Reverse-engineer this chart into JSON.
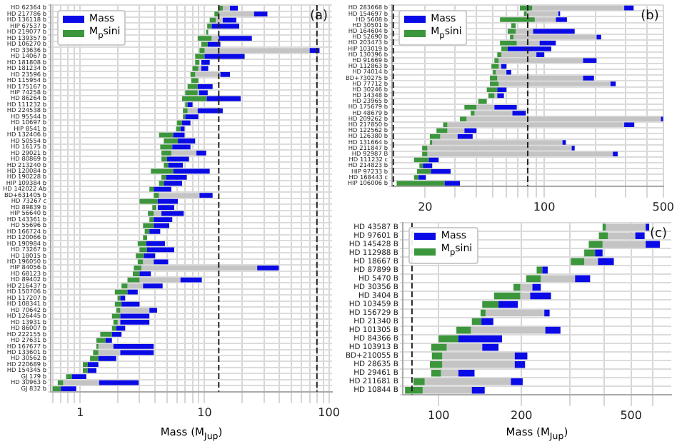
{
  "chart_data": [
    {
      "type": "bar",
      "orientation": "horizontal",
      "log": "x",
      "grid": true,
      "legend": "top left",
      "xlabel": "Mass (M$_{Jup}$)",
      "annotations": [
        "(a)"
      ],
      "categories": [
        "HD 62364 b",
        "HD 217786 b",
        "HD 136118 b",
        "HIP 67537 b",
        "HD 219077 b",
        "HD 139357 b",
        "HD 106270 b",
        "HD 33636 b",
        "HD 14067 b",
        "HD 181808 b",
        "HD 181234 b",
        "HD 23596 b",
        "HD 115954 b",
        "HD 175167 b",
        "HIP 74258 b",
        "HD 86264 b",
        "HD 111232 b",
        "HD 224538 b",
        "HD 95544 b",
        "HD 10697 b",
        "HIP 8541 b",
        "HD 132406 b",
        "HD 50554 b",
        "HD 16175 b",
        "HD 29021 b",
        "HD 80869 b",
        "HD 213240 b",
        "HD 120084 b",
        "HD 190228 b",
        "HIP 109384 b",
        "HD 142022 Ab",
        "BD+631405 b",
        "HD 73267 c",
        "HD 89839 b",
        "HIP 56640 b",
        "HD 143361 b",
        "HD 55696 b",
        "HD 166724 b",
        "HD 120066 b",
        "HD 190984 b",
        "HD 73267 b",
        "HD 18015 b",
        "HD 196050 b",
        "HIP 84056 b",
        "HD 68123 b",
        "HD 89402 b",
        "HD 216437 b",
        "HD 150706 b",
        "HD 117207 b",
        "HD 108341 b",
        "HD 70642 b",
        "HD 126445 b",
        "HD 13931 b",
        "HD 86007 b",
        "HD 222155 b",
        "HD 27631 b",
        "HD 167677 b",
        "HD 133601 b",
        "HD 30562 b",
        "HD 220689 b",
        "HD 154345 b",
        "GJ 179 b",
        "HD 30963 b",
        "GJ 832 b"
      ],
      "series": [
        {
          "name": "Mass",
          "color": "#0a0ae6",
          "base": [
            16,
            25,
            14,
            11.4,
            null,
            13,
            10.6,
            70,
            10,
            9.4,
            9.4,
            13.4,
            null,
            8.8,
            9,
            10.4,
            7.3,
            8.8,
            7,
            6.6,
            6.4,
            5.6,
            6.1,
            5.5,
            8.6,
            5,
            5.1,
            5.6,
            4.9,
            4.7,
            3.9,
            9.1,
            4.2,
            4.2,
            4.5,
            3.9,
            3.9,
            3.6,
            null,
            3.4,
            3.45,
            3.25,
            3.9,
            26.5,
            3,
            6.4,
            3.2,
            2.4,
            2.1,
            2.15,
            3.6,
            2.1,
            2.1,
            1.95,
            1.8,
            1.6,
            1.85,
            2.1,
            1.4,
            1.15,
            1.15,
            0.86,
            1.42,
            0.7
          ],
          "values": [
            2.5,
            7,
            4,
            7.6,
            null,
            11,
            2.8,
            14,
            11,
            1.6,
            1.3,
            2.6,
            null,
            2.8,
            1.6,
            9.1,
            0.7,
            5.2,
            1.9,
            1.1,
            0.5,
            1.3,
            2.3,
            2.2,
            1.7,
            2.5,
            1.6,
            5.4,
            2.3,
            1.9,
            1.5,
            2.5,
            1.9,
            1.5,
            2.3,
            1.6,
            1.3,
            0.8,
            null,
            1.4,
            2.25,
            0.75,
            1.2,
            13,
            0.7,
            3.1,
            1.4,
            0.5,
            0.2,
            0.85,
            0.55,
            1.5,
            1.5,
            0.35,
            0.35,
            0.2,
            2.05,
            1.8,
            0.55,
            0.25,
            0.2,
            0.26,
            1.53,
            0.23
          ]
        },
        {
          "name": "M$_{p}$sini",
          "color": "#3c963c",
          "base": [
            13,
            12,
            11,
            10.5,
            10.3,
            8.8,
            9.4,
            9.1,
            8.4,
            8.4,
            8,
            7.7,
            7.8,
            7.3,
            7,
            6.6,
            7,
            6.7,
            6.7,
            6,
            5.9,
            4.3,
            4.7,
            4.4,
            4.5,
            4.5,
            4.7,
            3.7,
            4.5,
            4.3,
            3.6,
            3.9,
            3,
            3.8,
            3.5,
            3.6,
            3.2,
            3.3,
            3.2,
            2.9,
            3,
            2.8,
            2.9,
            2.7,
            2.65,
            2.4,
            2.15,
            1.9,
            2,
            1.9,
            1.95,
            1.8,
            1.85,
            1.8,
            1.45,
            1.35,
            1.35,
            1.27,
            1.2,
            1.05,
            1.05,
            0.77,
            0.66,
            0.6
          ],
          "values": [
            1,
            1,
            1.3,
            0.9,
            0.4,
            2.6,
            1.2,
            0.9,
            1.6,
            0.7,
            0.9,
            0.7,
            1.1,
            1.5,
            1.8,
            3.8,
            0.3,
            0.6,
            0.3,
            0.6,
            0.5,
            1.3,
            1.4,
            1.1,
            0.9,
            0.5,
            0.4,
            1.9,
            0.4,
            0.4,
            0.3,
            0.4,
            1.2,
            0.3,
            0.4,
            0.3,
            0.7,
            0.3,
            0.25,
            0.5,
            0.45,
            0.45,
            0.3,
            0.4,
            0.35,
            0.6,
            0.25,
            0.5,
            0.1,
            0.25,
            0.15,
            0.3,
            0.15,
            0.15,
            0.35,
            0.25,
            0.05,
            0.13,
            0.2,
            0.1,
            0.1,
            0.09,
            0.07,
            0.1
          ]
        },
        {
          "color": "#c4c4c4",
          "base": [
            14,
            13,
            12.3,
            null,
            null,
            11.4,
            null,
            10,
            null,
            null,
            8.9,
            8.4,
            null,
            null,
            null,
            null,
            null,
            7.3,
            null,
            null,
            null,
            null,
            null,
            null,
            5.4,
            null,
            null,
            null,
            null,
            null,
            null,
            4.3,
            null,
            null,
            3.9,
            null,
            null,
            null,
            null,
            null,
            null,
            null,
            3.2,
            3.1,
            null,
            3,
            2.4,
            null,
            null,
            null,
            2.1,
            null,
            2,
            null,
            null,
            null,
            1.4,
            1.4,
            null,
            null,
            null,
            null,
            0.73,
            null
          ],
          "values": [
            2,
            12,
            1.7,
            null,
            null,
            1.6,
            null,
            60,
            null,
            null,
            0.5,
            5,
            null,
            null,
            null,
            null,
            null,
            1.5,
            null,
            null,
            null,
            null,
            null,
            null,
            3.2,
            null,
            null,
            null,
            null,
            null,
            null,
            4.8,
            null,
            null,
            0.6,
            null,
            null,
            null,
            null,
            null,
            null,
            null,
            0.7,
            23.4,
            null,
            3.4,
            0.8,
            null,
            null,
            null,
            1.5,
            null,
            0.1,
            null,
            null,
            null,
            0.45,
            0.7,
            null,
            null,
            null,
            null,
            0.69,
            null
          ]
        }
      ],
      "xlim": [
        0.58,
        106
      ],
      "xticks": [
        {
          "value": 0.6,
          "label": null
        },
        {
          "value": 0.7,
          "label": null
        },
        {
          "value": 0.8,
          "label": null
        },
        {
          "value": 0.9,
          "label": null
        },
        1,
        {
          "value": 2,
          "label": null
        },
        {
          "value": 3,
          "label": null
        },
        {
          "value": 4,
          "label": null
        },
        {
          "value": 5,
          "label": null
        },
        {
          "value": 6,
          "label": null
        },
        {
          "value": 7,
          "label": null
        },
        {
          "value": 8,
          "label": null
        },
        {
          "value": 9,
          "label": null
        },
        10,
        {
          "value": 20,
          "label": null
        },
        {
          "value": 30,
          "label": null
        },
        {
          "value": 40,
          "label": null
        },
        {
          "value": 50,
          "label": null
        },
        {
          "value": 60,
          "label": null
        },
        {
          "value": 70,
          "label": null
        },
        {
          "value": 80,
          "label": null
        },
        {
          "value": 90,
          "label": null
        },
        100
      ],
      "ref_lines": [
        {
          "axis": "x",
          "value": 13,
          "color": "#222222",
          "line_style": "dashed"
        },
        {
          "axis": "x",
          "value": 80,
          "color": "#222222",
          "line_style": "dashed"
        }
      ]
    },
    {
      "type": "bar",
      "orientation": "horizontal",
      "log": "x",
      "grid": true,
      "legend": "top left",
      "annotations": [
        "(b)"
      ],
      "categories": [
        "HD 283668 b",
        "HD 154697 b",
        "HD 5608 b",
        "HD 30501 b",
        "HD 164604 b",
        "HD 52690 b",
        "HD 203473 b",
        "HIP 103019 b",
        "HD 130396 b",
        "HD 91669 b",
        "HD 112863 b",
        "HD 74014 b",
        "BD+730275 b",
        "HD 77712 b",
        "HD 30246 b",
        "HD 14348 b",
        "HD 23965 b",
        "HD 175679 b",
        "HD 48679 b",
        "HD 209262 b",
        "HD 217850 b",
        "HD 122562 b",
        "HD 126380 b",
        "HD 131664 b",
        "HD 211847 b",
        "HD 92987 B",
        "HD 111232 c",
        "HD 214823 b",
        "HIP 97233 b",
        "HD 168443 c",
        "HIP 106006 b"
      ],
      "series": [
        {
          "name": "Mass",
          "color": "#0a0ae6",
          "base": [
            295,
            121,
            117,
            null,
            86,
            203,
            94,
            61,
            90,
            169,
            56,
            60,
            169,
            245,
            53,
            53,
            null,
            51,
            65,
            485,
            295,
            34,
            31,
            128,
            145,
            253,
            21,
            19.4,
            21.6,
            18.3,
            26
          ],
          "values": [
            40,
            3,
            19,
            null,
            65,
            13,
            23,
            49,
            10,
            34,
            4,
            4,
            27,
            18,
            7,
            5,
            null,
            18,
            13,
            15,
            43,
            6,
            7,
            6,
            6,
            17,
            3,
            2.6,
            6.6,
            1.9,
            6
          ]
        },
        {
          "name": "M$_{p}$sini",
          "color": "#3c963c",
          "base": [
            72,
            76,
            55,
            64,
            61,
            63,
            55,
            56,
            53,
            51,
            49,
            50,
            48,
            48,
            46,
            47,
            41,
            34,
            37,
            32,
            25.5,
            23.3,
            21.3,
            21.3,
            19.2,
            19.2,
            17.2,
            18.5,
            17.9,
            17.2,
            13.6
          ],
          "values": [
            13,
            3,
            33,
            4,
            7,
            3,
            14,
            5,
            3,
            3,
            5,
            2,
            5,
            6,
            7,
            4,
            5,
            6,
            2,
            3,
            1.5,
            3.7,
            3.2,
            0.7,
            1.4,
            1.4,
            3.8,
            0.9,
            3.7,
            1.1,
            12.4
          ]
        },
        {
          "color": "#c4c4c4",
          "base": [
            85,
            79,
            88,
            null,
            68,
            66,
            69,
            null,
            56,
            54,
            54,
            52,
            53,
            54,
            null,
            51,
            null,
            40,
            39,
            35,
            27,
            27,
            24.5,
            22,
            20.6,
            20.6,
            null,
            null,
            null,
            null,
            null
          ],
          "values": [
            210,
            42,
            29,
            null,
            18,
            137,
            25,
            null,
            34,
            115,
            2,
            8,
            116,
            191,
            null,
            2,
            null,
            11,
            26,
            450,
            268,
            7,
            6.5,
            106,
            124.4,
            232.4,
            null,
            null,
            null,
            null,
            null
          ]
        }
      ],
      "xlim": [
        12.8,
        500
      ],
      "xticks": [
        20,
        {
          "value": 30,
          "label": null
        },
        {
          "value": 40,
          "label": null
        },
        {
          "value": 50,
          "label": null
        },
        {
          "value": 60,
          "label": null
        },
        {
          "value": 70,
          "label": null
        },
        {
          "value": 80,
          "label": null
        },
        {
          "value": 90,
          "label": null
        },
        100,
        {
          "value": 200,
          "label": null
        },
        {
          "value": 300,
          "label": null
        },
        {
          "value": 400,
          "label": null
        },
        500
      ],
      "ref_lines": [
        {
          "axis": "x",
          "value": 13,
          "color": "#222222",
          "line_style": "dashed"
        },
        {
          "axis": "x",
          "value": 80,
          "color": "#222222",
          "line_style": "dashed"
        }
      ]
    },
    {
      "type": "bar",
      "orientation": "horizontal",
      "log": "x",
      "grid": true,
      "legend": "top left",
      "xlabel": "Mass (M$_{Jup}$)",
      "annotations": [
        "(c)"
      ],
      "categories": [
        "HD 43587 B",
        "HD 97601 B",
        "HD 145428 B",
        "HD 112988 B",
        "HD 18667 B",
        "HD 87899 B",
        "HD 5470 B",
        "HD 30356 B",
        "HD 3404 B",
        "HD 103459 B",
        "HD 156729 B",
        "HD 21340 B",
        "HD 101305 B",
        "HD 84366 B",
        "HD 103913 B",
        "BD+210055 B",
        "HD 28635 B",
        "HD 29461 B",
        "HD 211681 B",
        "HD 10844 B"
      ],
      "series": [
        {
          "name": "Mass",
          "color": "#0a0ae6",
          "base": [
            565,
            518,
            565,
            370,
            379,
            238,
            313,
            219,
            215,
            165,
            242,
            143,
            244,
            118,
            144,
            189,
            189,
            118,
            183,
            132
          ],
          "values": [
            17,
            42,
            71,
            24,
            54,
            11,
            42,
            16,
            41,
            29,
            11,
            15,
            33,
            52,
            21,
            21,
            17,
            17,
            19,
            15
          ]
        },
        {
          "name": "M$_{p}$sini",
          "color": "#3c963c",
          "base": [
            394,
            382,
            351,
            338,
            302,
            227,
            208,
            187,
            159,
            144,
            142,
            132,
            116,
            100,
            94,
            94.5,
            93,
            94,
            81,
            75.5
          ],
          "values": [
            11,
            30,
            43,
            32,
            36,
            11,
            27,
            11,
            39,
            21,
            6,
            11,
            15,
            18,
            13,
            8.5,
            10,
            8,
            8,
            12
          ]
        },
        {
          "color": "#c4c4c4",
          "base": [
            405,
            412,
            394,
            null,
            338,
            null,
            235,
            198,
            198,
            null,
            148,
            null,
            131,
            null,
            107,
            103,
            103,
            102,
            89,
            87.5
          ],
          "values": [
            160,
            106,
            171,
            null,
            41,
            null,
            78,
            21,
            17,
            null,
            94,
            null,
            113,
            null,
            37,
            86,
            86,
            16,
            94,
            44.5
          ]
        }
      ],
      "xlim": [
        74,
        700
      ],
      "xticks": [
        100,
        200,
        {
          "value": 300,
          "label": null
        },
        {
          "value": 400,
          "label": null
        },
        500,
        {
          "value": 600,
          "label": null
        }
      ],
      "ref_lines": [
        {
          "axis": "x",
          "value": 80,
          "color": "#222222",
          "line_style": "dashed"
        }
      ]
    }
  ]
}
